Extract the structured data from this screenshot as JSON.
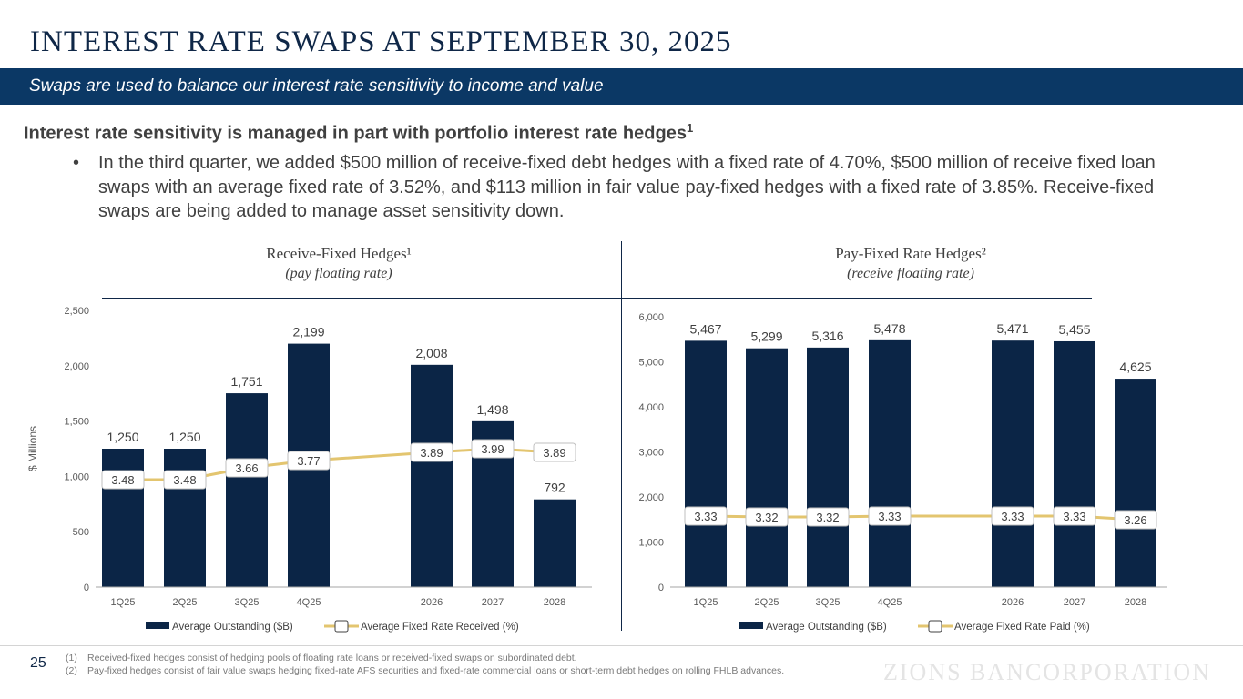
{
  "page": {
    "title": "INTEREST RATE SWAPS AT SEPTEMBER 30, 2025",
    "banner": "Swaps are used to balance our interest rate sensitivity to income and value",
    "heading": "Interest rate sensitivity is managed in part with portfolio interest rate hedges",
    "heading_sup": "1",
    "bullet_marker": "•",
    "bullet": "In the third quarter, we added $500 million of receive-fixed debt hedges with a fixed rate of 4.70%, $500 million of receive fixed loan swaps with an average fixed rate of 3.52%, and $113 million in fair value pay-fixed hedges with a fixed rate of 3.85%. Receive-fixed swaps are being added to manage asset sensitivity down.",
    "page_number": "25",
    "footnotes": [
      {
        "num": "(1)",
        "text": "Received-fixed hedges consist of hedging pools of floating rate loans or received-fixed swaps on subordinated debt."
      },
      {
        "num": "(2)",
        "text": "Pay-fixed hedges consist of fair value swaps hedging fixed-rate AFS securities and fixed-rate commercial loans or short-term debt hedges on rolling FHLB advances."
      }
    ],
    "logo": "ZIONS BANCORPORATION",
    "colors": {
      "bar": "#0b2546",
      "line": "#e3c56f",
      "banner": "#0b3865",
      "title": "#0f2747"
    }
  },
  "chart_data": [
    {
      "type": "bar",
      "title": "Receive-Fixed Hedges¹",
      "subtitle": "(pay floating rate)",
      "xlabel": "",
      "ylabel": "$ Millions",
      "ylim": [
        0,
        2500
      ],
      "yticks": [
        0,
        500,
        1000,
        1500,
        2000,
        2500
      ],
      "ytick_labels": [
        "0",
        "500",
        "1,000",
        "1,500",
        "2,000",
        "2,500"
      ],
      "categories": [
        "1Q25",
        "2Q25",
        "3Q25",
        "4Q25",
        "2026",
        "2027",
        "2028"
      ],
      "gap_after_index": 3,
      "grid": false,
      "legend_position": "bottom",
      "series": [
        {
          "name": "Average Outstanding ($B)",
          "type": "bar",
          "values": [
            1250,
            1250,
            1751,
            2199,
            2008,
            1498,
            792
          ],
          "labels": [
            "1,250",
            "1,250",
            "1,751",
            "2,199",
            "2,008",
            "1,498",
            "792"
          ]
        },
        {
          "name": "Average Fixed Rate Received (%)",
          "type": "line",
          "values": [
            3.48,
            3.48,
            3.66,
            3.77,
            3.89,
            3.99,
            3.89
          ],
          "labels": [
            "3.48",
            "3.48",
            "3.66",
            "3.77",
            "3.89",
            "3.99",
            "3.89"
          ],
          "secondary_axis": true
        }
      ]
    },
    {
      "type": "bar",
      "title": "Pay-Fixed Rate Hedges²",
      "subtitle": "(receive floating rate)",
      "xlabel": "",
      "ylabel": "",
      "ylim": [
        0,
        6000
      ],
      "yticks": [
        0,
        1000,
        2000,
        3000,
        4000,
        5000,
        6000
      ],
      "ytick_labels": [
        "0",
        "1,000",
        "2,000",
        "3,000",
        "4,000",
        "5,000",
        "6,000"
      ],
      "categories": [
        "1Q25",
        "2Q25",
        "3Q25",
        "4Q25",
        "2026",
        "2027",
        "2028"
      ],
      "gap_after_index": 3,
      "grid": false,
      "legend_position": "bottom",
      "series": [
        {
          "name": "Average Outstanding ($B)",
          "type": "bar",
          "values": [
            5467,
            5299,
            5316,
            5478,
            5471,
            5455,
            4625
          ],
          "labels": [
            "5,467",
            "5,299",
            "5,316",
            "5,478",
            "5,471",
            "5,455",
            "4,625"
          ]
        },
        {
          "name": "Average Fixed Rate Paid (%)",
          "type": "line",
          "values": [
            3.33,
            3.32,
            3.32,
            3.33,
            3.33,
            3.33,
            3.26
          ],
          "labels": [
            "3.33",
            "3.32",
            "3.32",
            "3.33",
            "3.33",
            "3.33",
            "3.26"
          ],
          "secondary_axis": true
        }
      ]
    }
  ]
}
